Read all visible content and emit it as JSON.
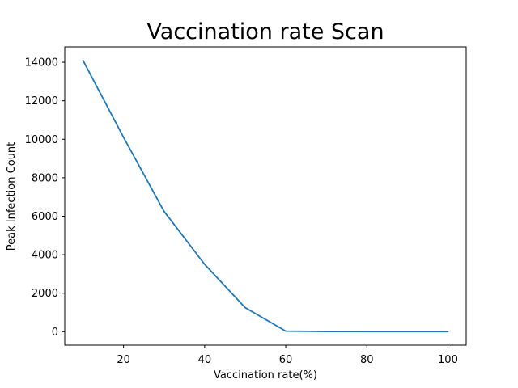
{
  "chart_data": {
    "type": "line",
    "title": "Vaccination rate Scan",
    "xlabel": "Vaccination rate(%)",
    "ylabel": "Peak Infection Count",
    "xlim": [
      5.5,
      104.5
    ],
    "ylim": [
      -700,
      14800
    ],
    "xticks": [
      20,
      40,
      60,
      80,
      100
    ],
    "yticks": [
      0,
      2000,
      4000,
      6000,
      8000,
      10000,
      12000,
      14000
    ],
    "grid": false,
    "series": [
      {
        "x": [
          10,
          20,
          30,
          40,
          50,
          60,
          70,
          80,
          90,
          100
        ],
        "values": [
          14100,
          10100,
          6250,
          3500,
          1250,
          30,
          10,
          5,
          5,
          5
        ],
        "color": "#1f77b4"
      }
    ]
  }
}
